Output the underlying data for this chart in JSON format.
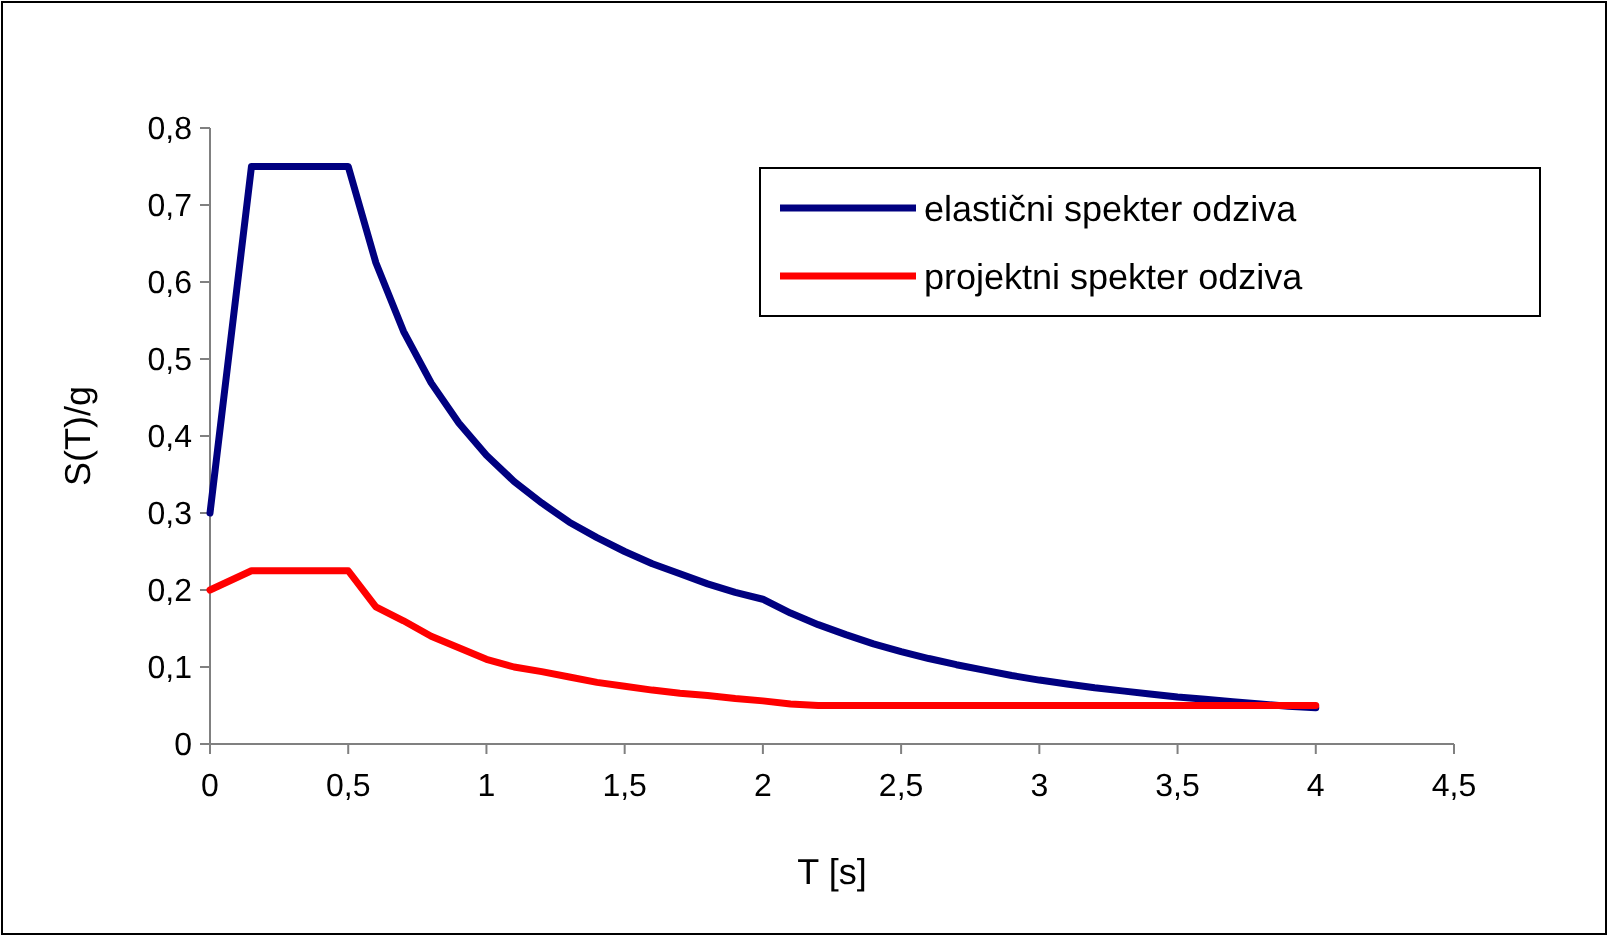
{
  "chart_data": {
    "type": "line",
    "xlabel": "T [s]",
    "ylabel": "S(T)/g",
    "xlim": [
      0,
      4.5
    ],
    "xticks": [
      0,
      {
        "value": 0.5,
        "label": "0,5"
      },
      1,
      {
        "value": 1.5,
        "label": "1,5"
      },
      2,
      {
        "value": 2.5,
        "label": "2,5"
      },
      3,
      {
        "value": 3.5,
        "label": "3,5"
      },
      4,
      {
        "value": 4.5,
        "label": "4,5"
      }
    ],
    "ylim": [
      0,
      0.8
    ],
    "yticks": [
      0,
      {
        "value": 0.1,
        "label": "0,1"
      },
      {
        "value": 0.2,
        "label": "0,2"
      },
      {
        "value": 0.3,
        "label": "0,3"
      },
      {
        "value": 0.4,
        "label": "0,4"
      },
      {
        "value": 0.5,
        "label": "0,5"
      },
      {
        "value": 0.6,
        "label": "0,6"
      },
      {
        "value": 0.7,
        "label": "0,7"
      },
      {
        "value": 0.8,
        "label": "0,8"
      }
    ],
    "grid": false,
    "legend": "top right",
    "marker": "none",
    "line_style": "solid",
    "x": [
      0,
      0.15,
      0.5,
      0.6,
      0.7,
      0.8,
      0.9,
      1.0,
      1.1,
      1.2,
      1.3,
      1.4,
      1.5,
      1.6,
      1.7,
      1.8,
      1.9,
      2.0,
      2.1,
      2.2,
      2.3,
      2.4,
      2.5,
      2.6,
      2.7,
      2.8,
      2.9,
      3.0,
      3.1,
      3.2,
      3.3,
      3.4,
      3.5,
      3.6,
      3.7,
      3.8,
      3.9,
      4.0
    ],
    "series": [
      {
        "name": "elastični spekter odziva",
        "color": "#000080",
        "values": [
          0.3,
          0.75,
          0.75,
          0.625,
          0.536,
          0.469,
          0.417,
          0.375,
          0.341,
          0.313,
          0.288,
          0.268,
          0.25,
          0.234,
          0.221,
          0.208,
          0.197,
          0.188,
          0.17,
          0.155,
          0.142,
          0.13,
          0.12,
          0.111,
          0.103,
          0.096,
          0.089,
          0.083,
          0.078,
          0.073,
          0.069,
          0.065,
          0.061,
          0.058,
          0.055,
          0.052,
          0.049,
          0.047
        ]
      },
      {
        "name": "projektni spekter odziva",
        "color": "#ff0000",
        "values": [
          0.2,
          0.225,
          0.225,
          0.178,
          0.16,
          0.14,
          0.125,
          0.11,
          0.1,
          0.094,
          0.087,
          0.08,
          0.075,
          0.07,
          0.066,
          0.063,
          0.059,
          0.056,
          0.052,
          0.05,
          0.05,
          0.05,
          0.05,
          0.05,
          0.05,
          0.05,
          0.05,
          0.05,
          0.05,
          0.05,
          0.05,
          0.05,
          0.05,
          0.05,
          0.05,
          0.05,
          0.05,
          0.05
        ]
      }
    ]
  }
}
